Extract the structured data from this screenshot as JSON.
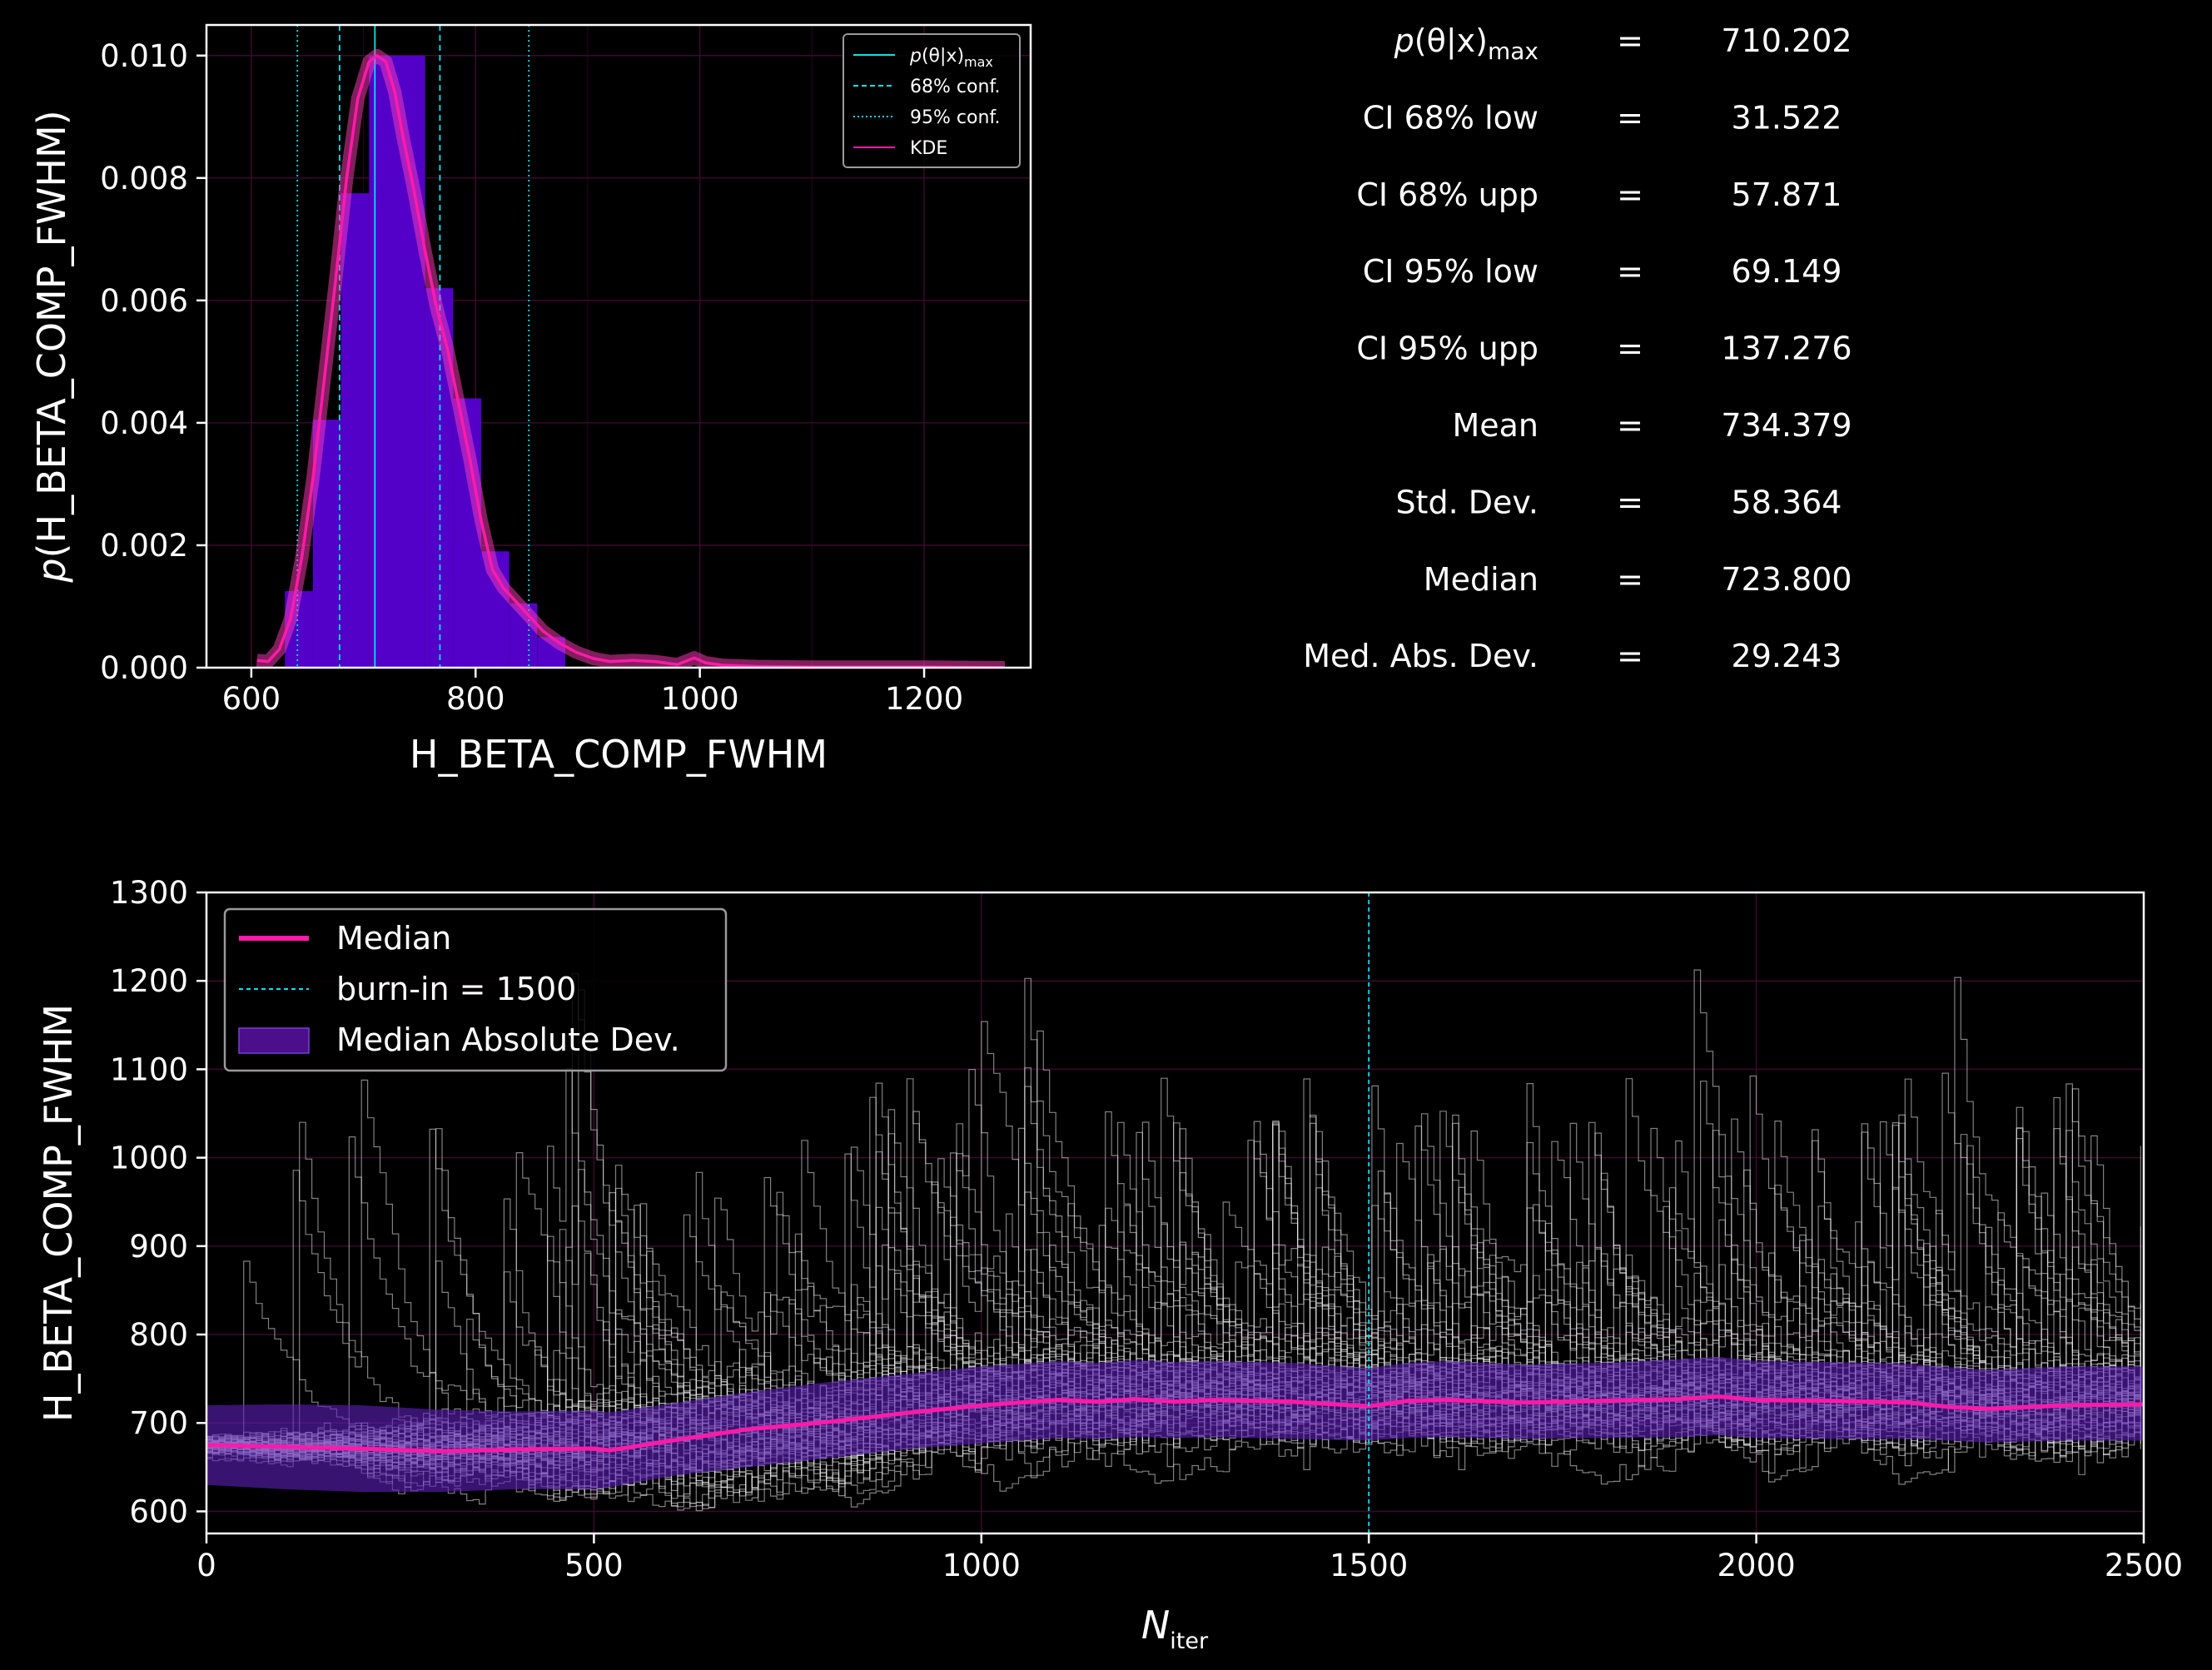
{
  "chart_data": [
    {
      "type": "bar",
      "subtype": "histogram with KDE",
      "xlabel": "H_BETA_COMP_FWHM",
      "ylabel": "p(H_BETA_COMP_FWHM)",
      "xlim": [
        560,
        1295
      ],
      "ylim": [
        0,
        0.0105
      ],
      "xticks": [
        "600",
        "800",
        "1000",
        "1200"
      ],
      "yticks": [
        "0.000",
        "0.002",
        "0.004",
        "0.006",
        "0.008",
        "0.010"
      ],
      "bins": [
        {
          "x0": 630,
          "x1": 655,
          "y": 0.00125
        },
        {
          "x0": 655,
          "x1": 680,
          "y": 0.00405
        },
        {
          "x0": 680,
          "x1": 705,
          "y": 0.00775
        },
        {
          "x0": 705,
          "x1": 730,
          "y": 0.01
        },
        {
          "x0": 730,
          "x1": 755,
          "y": 0.01
        },
        {
          "x0": 755,
          "x1": 780,
          "y": 0.0062
        },
        {
          "x0": 780,
          "x1": 805,
          "y": 0.0044
        },
        {
          "x0": 805,
          "x1": 830,
          "y": 0.0019
        },
        {
          "x0": 830,
          "x1": 855,
          "y": 0.00105
        },
        {
          "x0": 855,
          "x1": 880,
          "y": 0.0005
        }
      ],
      "kde": {
        "x": [
          605,
          615,
          625,
          635,
          645,
          655,
          665,
          675,
          685,
          695,
          705,
          712,
          720,
          728,
          735,
          745,
          755,
          765,
          775,
          785,
          795,
          805,
          815,
          825,
          835,
          845,
          860,
          875,
          890,
          905,
          920,
          940,
          960,
          980,
          995,
          1005,
          1020,
          1050,
          1100,
          1150,
          1200,
          1272
        ],
        "y": [
          0.00012,
          0.0001,
          0.0003,
          0.0008,
          0.0018,
          0.0031,
          0.0047,
          0.0063,
          0.008,
          0.0093,
          0.0099,
          0.01,
          0.0099,
          0.0094,
          0.0087,
          0.0078,
          0.0068,
          0.0059,
          0.0052,
          0.0043,
          0.0034,
          0.0024,
          0.0016,
          0.0013,
          0.0011,
          0.0009,
          0.0006,
          0.0004,
          0.00025,
          0.00015,
          0.0001,
          0.00012,
          0.0001,
          5e-05,
          0.00016,
          8e-05,
          4e-05,
          2e-05,
          1e-05,
          1e-05,
          1e-05,
          0.0
        ]
      },
      "lines": {
        "max": 710.2,
        "conf68": [
          678.7,
          768.2
        ],
        "conf95": [
          641.1,
          847.5
        ]
      },
      "legend": {
        "position": "upper right",
        "entries": [
          {
            "label": "p(θ|x)",
            "sub": "max",
            "style": "solid",
            "color": "#00e5ee"
          },
          {
            "label": "68% conf.",
            "style": "dashed",
            "color": "#00e5ee"
          },
          {
            "label": "95% conf.",
            "style": "dotted",
            "color": "#00e5ee"
          },
          {
            "label": "KDE",
            "style": "solid",
            "color": "#ff1aa8"
          }
        ]
      },
      "colors": {
        "bars": "#5300c8",
        "kde": "#ff1aa8",
        "kde_glow": "#ff3db8",
        "lines": "#00e5ee"
      }
    },
    {
      "type": "line",
      "xlabel": "N",
      "xlabel_sub": "iter",
      "ylabel": "H_BETA_COMP_FWHM",
      "xlim": [
        0,
        2500
      ],
      "ylim": [
        575,
        1300
      ],
      "xticks": [
        "0",
        "500",
        "1000",
        "1500",
        "2000",
        "2500"
      ],
      "yticks": [
        "600",
        "700",
        "800",
        "900",
        "1000",
        "1100",
        "1200",
        "1300"
      ],
      "burn_in": 1500,
      "median": {
        "x": [
          0,
          100,
          200,
          300,
          400,
          500,
          520,
          600,
          700,
          800,
          900,
          1000,
          1050,
          1100,
          1150,
          1200,
          1250,
          1300,
          1400,
          1500,
          1550,
          1600,
          1700,
          1800,
          1900,
          1950,
          2000,
          2100,
          2200,
          2250,
          2300,
          2400,
          2500
        ],
        "y": [
          675,
          673,
          671,
          668,
          670,
          671,
          669,
          680,
          693,
          701,
          711,
          720,
          723,
          726,
          724,
          727,
          724,
          726,
          724,
          719,
          725,
          726,
          723,
          725,
          727,
          730,
          726,
          725,
          723,
          718,
          716,
          720,
          721
        ]
      },
      "mad_lower": [
        630,
        625,
        622,
        622,
        625,
        625,
        627,
        640,
        650,
        660,
        670,
        677,
        680,
        683,
        682,
        684,
        683,
        684,
        682,
        680,
        683,
        684,
        682,
        683,
        684,
        686,
        683,
        682,
        682,
        680,
        678,
        680,
        680
      ],
      "mad_upper": [
        720,
        721,
        720,
        715,
        713,
        714,
        712,
        722,
        735,
        746,
        755,
        764,
        767,
        770,
        768,
        771,
        769,
        770,
        768,
        762,
        768,
        770,
        766,
        768,
        772,
        775,
        770,
        769,
        767,
        763,
        760,
        764,
        764
      ],
      "walkers": {
        "count": 50,
        "color": "#e8e8e8"
      },
      "legend": {
        "position": "upper left",
        "entries": [
          {
            "label": "Median",
            "style": "solid",
            "color": "#ff1aa8"
          },
          {
            "label": "burn-in = 1500",
            "style": "dashed",
            "color": "#00e5ee"
          },
          {
            "label": "Median Absolute Dev.",
            "style": "patch",
            "color": "#4b0f8c"
          }
        ]
      },
      "colors": {
        "median": "#ff1aa8",
        "mad_band": "#5a1fb4",
        "burn": "#00e5ee"
      }
    }
  ],
  "stats": [
    {
      "label": "p(θ|x)",
      "label_sub": "max",
      "eq": "=",
      "value": "710.202"
    },
    {
      "label": "CI 68% low",
      "eq": "=",
      "value": "31.522"
    },
    {
      "label": "CI 68% upp",
      "eq": "=",
      "value": "57.871"
    },
    {
      "label": "CI 95% low",
      "eq": "=",
      "value": "69.149"
    },
    {
      "label": "CI 95% upp",
      "eq": "=",
      "value": "137.276"
    },
    {
      "label": "Mean",
      "eq": "=",
      "value": "734.379"
    },
    {
      "label": "Std.  Dev.",
      "eq": "=",
      "value": "58.364"
    },
    {
      "label": "Median",
      "eq": "=",
      "value": "723.800"
    },
    {
      "label": "Med. Abs. Dev.",
      "eq": "=",
      "value": "29.243"
    }
  ]
}
